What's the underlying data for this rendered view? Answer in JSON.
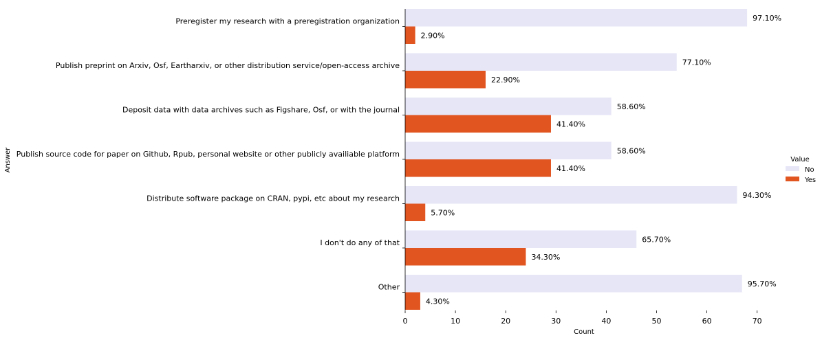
{
  "chart_data": {
    "type": "bar",
    "orientation": "horizontal",
    "xlabel": "Count",
    "ylabel": "Answer",
    "xlim": [
      0,
      73
    ],
    "xticks": [
      0,
      10,
      20,
      30,
      40,
      50,
      60,
      70
    ],
    "categories": [
      "Preregister my research with a preregistration organization",
      "Publish preprint on Arxiv, Osf, Eartharxiv, or other distribution service/open-access archive",
      "Deposit data with data archives such as Figshare, Osf, or with the journal",
      "Publish source code for paper on Github, Rpub, personal website or other publicly availiable platform",
      "Distribute software package on CRAN, pypi, etc about my research",
      "I don't do any of that",
      "Other"
    ],
    "series": [
      {
        "name": "No",
        "color": "#e6e6f7",
        "values": [
          68,
          54,
          41,
          41,
          66,
          46,
          67
        ],
        "labels": [
          "97.10%",
          "77.10%",
          "58.60%",
          "58.60%",
          "94.30%",
          "65.70%",
          "95.70%"
        ]
      },
      {
        "name": "Yes",
        "color": "#e15520",
        "values": [
          2,
          16,
          29,
          29,
          4,
          24,
          3
        ],
        "labels": [
          "2.90%",
          "22.90%",
          "41.40%",
          "41.40%",
          "5.70%",
          "34.30%",
          "4.30%"
        ]
      }
    ],
    "legend": {
      "title": "Value",
      "placement": "right"
    },
    "grid": false
  }
}
